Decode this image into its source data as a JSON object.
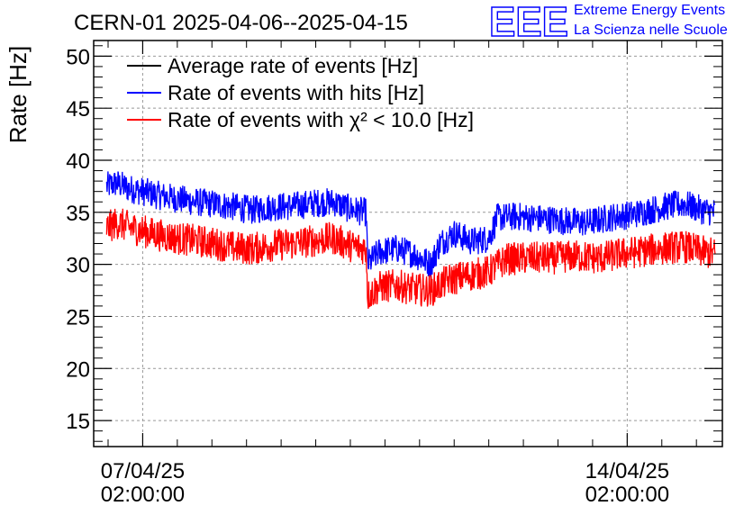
{
  "chart_data": {
    "type": "line",
    "title": "CERN-01 2025-04-06--2025-04-15",
    "xlabel": "",
    "ylabel": "Rate [Hz]",
    "x_range": [
      "2025-04-06 09:00:00",
      "2025-04-15 11:00:00"
    ],
    "ylim": [
      12.5,
      51.5
    ],
    "y_ticks": [
      "15",
      "20",
      "25",
      "30",
      "35",
      "40",
      "45",
      "50"
    ],
    "x_ticks": [
      {
        "date": "07/04/25",
        "time": "02:00:00",
        "at": "2025-04-07 02:00:00"
      },
      {
        "date": "14/04/25",
        "time": "02:00:00",
        "at": "2025-04-14 02:00:00"
      }
    ],
    "grid": true,
    "legend_position": "top-left",
    "series": [
      {
        "name": "Average rate of events [Hz]",
        "color": "#000000",
        "points": []
      },
      {
        "name": "Rate of events with hits [Hz]",
        "color": "#0000ff",
        "noise": 1.4,
        "points": [
          [
            "2025-04-06 13:30:00",
            37.5
          ],
          [
            "2025-04-06 17:00:00",
            37.8
          ],
          [
            "2025-04-06 21:00:00",
            37.3
          ],
          [
            "2025-04-07 02:00:00",
            37.0
          ],
          [
            "2025-04-07 08:00:00",
            36.6
          ],
          [
            "2025-04-07 14:00:00",
            36.3
          ],
          [
            "2025-04-07 20:00:00",
            36.0
          ],
          [
            "2025-04-08 03:00:00",
            35.8
          ],
          [
            "2025-04-08 10:00:00",
            35.5
          ],
          [
            "2025-04-08 16:00:00",
            35.2
          ],
          [
            "2025-04-08 22:00:00",
            35.5
          ],
          [
            "2025-04-09 06:00:00",
            35.6
          ],
          [
            "2025-04-09 14:00:00",
            35.9
          ],
          [
            "2025-04-09 20:00:00",
            36.0
          ],
          [
            "2025-04-10 02:00:00",
            35.3
          ],
          [
            "2025-04-10 07:30:00",
            35.0
          ],
          [
            "2025-04-10 08:00:00",
            30.0
          ],
          [
            "2025-04-10 12:00:00",
            31.2
          ],
          [
            "2025-04-10 18:00:00",
            31.5
          ],
          [
            "2025-04-11 00:00:00",
            31.0
          ],
          [
            "2025-04-11 06:00:00",
            30.0
          ],
          [
            "2025-04-11 09:00:00",
            32.0
          ],
          [
            "2025-04-11 14:00:00",
            33.0
          ],
          [
            "2025-04-11 20:00:00",
            32.2
          ],
          [
            "2025-04-12 02:00:00",
            32.5
          ],
          [
            "2025-04-12 05:00:00",
            34.5
          ],
          [
            "2025-04-12 12:00:00",
            34.6
          ],
          [
            "2025-04-12 20:00:00",
            34.4
          ],
          [
            "2025-04-13 04:00:00",
            34.2
          ],
          [
            "2025-04-13 12:00:00",
            34.0
          ],
          [
            "2025-04-13 20:00:00",
            34.5
          ],
          [
            "2025-04-14 04:00:00",
            34.8
          ],
          [
            "2025-04-14 10:00:00",
            35.2
          ],
          [
            "2025-04-14 16:00:00",
            35.6
          ],
          [
            "2025-04-14 22:00:00",
            35.8
          ],
          [
            "2025-04-15 04:00:00",
            35.2
          ],
          [
            "2025-04-15 08:30:00",
            35.0
          ]
        ]
      },
      {
        "name": "Rate of events with χ² < 10.0 [Hz]",
        "color": "#ff0000",
        "noise": 1.6,
        "points": [
          [
            "2025-04-06 13:30:00",
            33.5
          ],
          [
            "2025-04-06 17:00:00",
            34.0
          ],
          [
            "2025-04-06 21:00:00",
            33.6
          ],
          [
            "2025-04-07 02:00:00",
            33.2
          ],
          [
            "2025-04-07 08:00:00",
            32.8
          ],
          [
            "2025-04-07 14:00:00",
            32.5
          ],
          [
            "2025-04-07 20:00:00",
            32.3
          ],
          [
            "2025-04-08 03:00:00",
            32.0
          ],
          [
            "2025-04-08 10:00:00",
            31.6
          ],
          [
            "2025-04-08 16:00:00",
            31.5
          ],
          [
            "2025-04-08 22:00:00",
            31.8
          ],
          [
            "2025-04-09 06:00:00",
            32.0
          ],
          [
            "2025-04-09 14:00:00",
            32.3
          ],
          [
            "2025-04-09 20:00:00",
            32.5
          ],
          [
            "2025-04-10 02:00:00",
            31.8
          ],
          [
            "2025-04-10 07:30:00",
            31.5
          ],
          [
            "2025-04-10 08:00:00",
            27.0
          ],
          [
            "2025-04-10 12:00:00",
            27.8
          ],
          [
            "2025-04-10 18:00:00",
            28.0
          ],
          [
            "2025-04-11 00:00:00",
            27.6
          ],
          [
            "2025-04-11 06:00:00",
            27.5
          ],
          [
            "2025-04-11 12:00:00",
            28.5
          ],
          [
            "2025-04-11 20:00:00",
            29.0
          ],
          [
            "2025-04-12 02:00:00",
            29.3
          ],
          [
            "2025-04-12 08:00:00",
            30.5
          ],
          [
            "2025-04-12 16:00:00",
            30.6
          ],
          [
            "2025-04-13 00:00:00",
            30.6
          ],
          [
            "2025-04-13 08:00:00",
            30.8
          ],
          [
            "2025-04-13 16:00:00",
            30.6
          ],
          [
            "2025-04-14 00:00:00",
            31.0
          ],
          [
            "2025-04-14 08:00:00",
            31.3
          ],
          [
            "2025-04-14 16:00:00",
            31.6
          ],
          [
            "2025-04-14 22:00:00",
            31.7
          ],
          [
            "2025-04-15 04:00:00",
            31.2
          ],
          [
            "2025-04-15 08:30:00",
            31.0
          ]
        ]
      }
    ]
  },
  "logo": {
    "mark": "EEE",
    "line1": "Extreme Energy Events",
    "line2": "La Scienza nelle Scuole",
    "color": "#0000ff"
  }
}
